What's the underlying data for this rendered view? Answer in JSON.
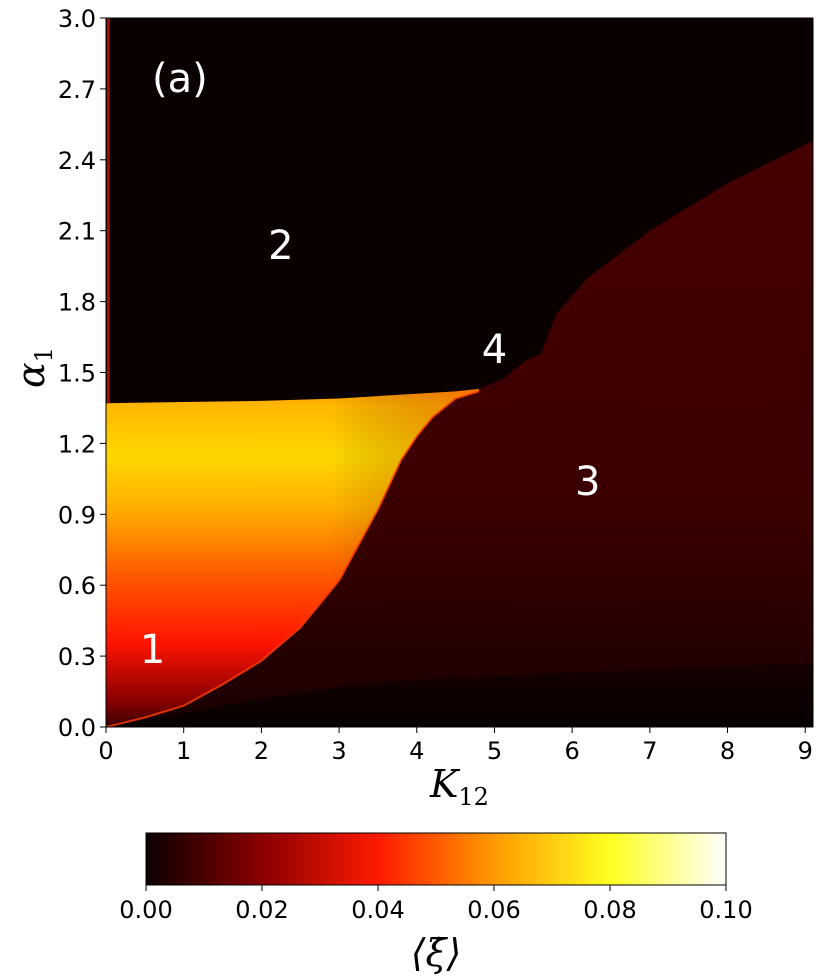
{
  "chart_data": {
    "type": "heatmap",
    "panel_label": "(a)",
    "xlabel": "K",
    "xlabel_sub": "12",
    "ylabel": "α",
    "ylabel_sub": "1",
    "xlim": [
      0,
      9.1
    ],
    "ylim": [
      0,
      3.0
    ],
    "x_ticks": [
      0,
      1,
      2,
      3,
      4,
      5,
      6,
      7,
      8,
      9
    ],
    "y_ticks": [
      0.0,
      0.3,
      0.6,
      0.9,
      1.2,
      1.5,
      1.8,
      2.1,
      2.4,
      2.7,
      3.0
    ],
    "y_tick_labels": [
      "0.0",
      "0.3",
      "0.6",
      "0.9",
      "1.2",
      "1.5",
      "1.8",
      "2.1",
      "2.4",
      "2.7",
      "3.0"
    ],
    "colormap": "hot",
    "colorbar": {
      "min": 0.0,
      "max": 0.1,
      "ticks": [
        "0.00",
        "0.02",
        "0.04",
        "0.06",
        "0.08",
        "0.10"
      ],
      "label": "⟨ξ̇⟩",
      "colors": [
        "#0b0000",
        "#8a0000",
        "#ff1a00",
        "#ff9a00",
        "#ffff20",
        "#ffffff"
      ]
    },
    "region_labels": [
      {
        "text": "1",
        "x": 0.6,
        "y": 0.33
      },
      {
        "text": "2",
        "x": 2.25,
        "y": 2.04
      },
      {
        "text": "3",
        "x": 6.2,
        "y": 1.04
      },
      {
        "text": "4",
        "x": 5.0,
        "y": 1.6
      }
    ],
    "boundaries": {
      "region1_top": 1.37,
      "region1_right": [
        [
          0.0,
          0.0
        ],
        [
          0.5,
          0.04
        ],
        [
          1.0,
          0.09
        ],
        [
          1.5,
          0.18
        ],
        [
          2.0,
          0.28
        ],
        [
          2.5,
          0.42
        ],
        [
          3.0,
          0.62
        ],
        [
          3.5,
          0.92
        ],
        [
          3.8,
          1.13
        ],
        [
          4.0,
          1.23
        ],
        [
          4.2,
          1.31
        ],
        [
          4.5,
          1.39
        ],
        [
          4.8,
          1.42
        ]
      ],
      "region2_bottom": [
        [
          0.0,
          1.37
        ],
        [
          1.0,
          1.375
        ],
        [
          2.0,
          1.38
        ],
        [
          3.0,
          1.39
        ],
        [
          3.5,
          1.4
        ],
        [
          4.0,
          1.41
        ],
        [
          4.5,
          1.42
        ],
        [
          4.8,
          1.43
        ],
        [
          5.1,
          1.47
        ],
        [
          5.4,
          1.55
        ],
        [
          5.6,
          1.58
        ],
        [
          5.8,
          1.75
        ],
        [
          6.2,
          1.9
        ],
        [
          7.0,
          2.1
        ],
        [
          8.0,
          2.3
        ],
        [
          9.1,
          2.48
        ]
      ],
      "lower_dark_band": [
        [
          0.0,
          0.0
        ],
        [
          1.0,
          0.06
        ],
        [
          2.0,
          0.12
        ],
        [
          3.0,
          0.17
        ],
        [
          4.0,
          0.2
        ],
        [
          6.0,
          0.23
        ],
        [
          9.1,
          0.27
        ]
      ]
    }
  }
}
